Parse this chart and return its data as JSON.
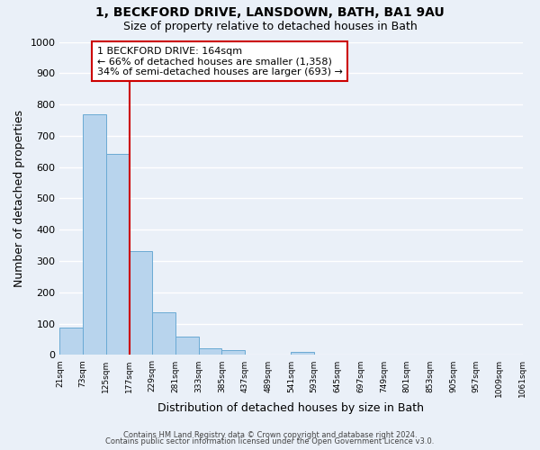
{
  "title": "1, BECKFORD DRIVE, LANSDOWN, BATH, BA1 9AU",
  "subtitle": "Size of property relative to detached houses in Bath",
  "xlabel": "Distribution of detached houses by size in Bath",
  "ylabel": "Number of detached properties",
  "bar_values": [
    87,
    770,
    641,
    332,
    135,
    60,
    22,
    15,
    0,
    0,
    10,
    0,
    0,
    0,
    0,
    0,
    0,
    0,
    0,
    0
  ],
  "bar_labels": [
    "21sqm",
    "73sqm",
    "125sqm",
    "177sqm",
    "229sqm",
    "281sqm",
    "333sqm",
    "385sqm",
    "437sqm",
    "489sqm",
    "541sqm",
    "593sqm",
    "645sqm",
    "697sqm",
    "749sqm",
    "801sqm",
    "853sqm",
    "905sqm",
    "957sqm",
    "1009sqm",
    "1061sqm"
  ],
  "bar_color": "#b8d4ed",
  "bar_edge_color": "#6aaad4",
  "property_line_color": "#cc0000",
  "ylim": [
    0,
    1000
  ],
  "yticks": [
    0,
    100,
    200,
    300,
    400,
    500,
    600,
    700,
    800,
    900,
    1000
  ],
  "annotation_title": "1 BECKFORD DRIVE: 164sqm",
  "annotation_line1": "← 66% of detached houses are smaller (1,358)",
  "annotation_line2": "34% of semi-detached houses are larger (693) →",
  "annotation_box_color": "#ffffff",
  "annotation_box_edge_color": "#cc0000",
  "footer_line1": "Contains HM Land Registry data © Crown copyright and database right 2024.",
  "footer_line2": "Contains public sector information licensed under the Open Government Licence v3.0.",
  "background_color": "#eaf0f8",
  "grid_color": "#ffffff"
}
